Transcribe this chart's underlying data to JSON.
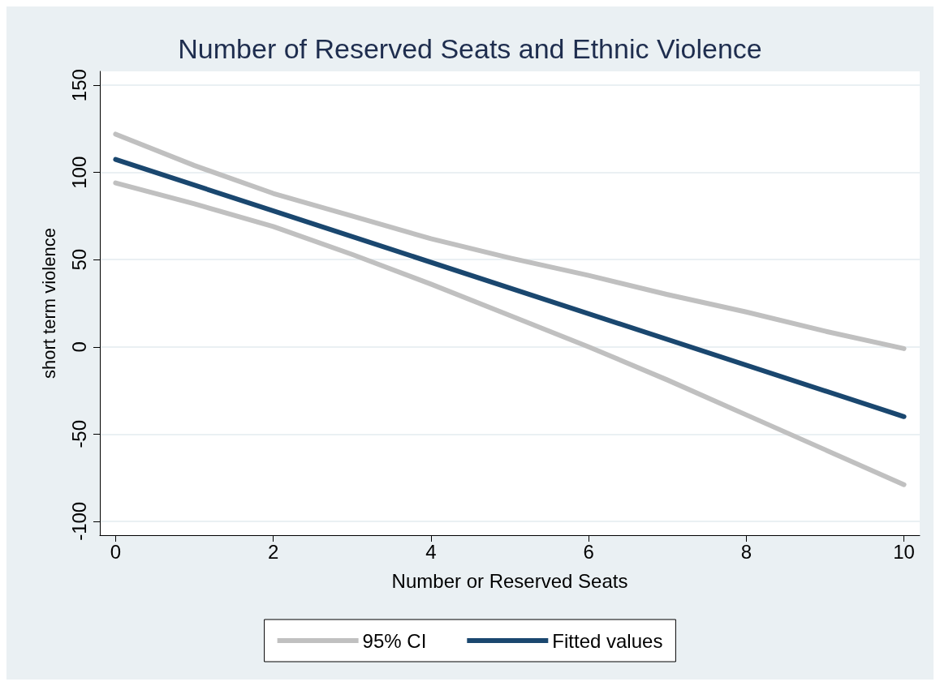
{
  "chart_data": {
    "type": "line",
    "title": "Number of Reserved Seats and Ethnic Violence",
    "xlabel": "Number or Reserved Seats",
    "ylabel": "short term violence",
    "xlim": [
      -0.2,
      10.2
    ],
    "xticks": [
      0,
      2,
      4,
      6,
      8,
      10
    ],
    "ylim": [
      -108,
      158
    ],
    "yticks": [
      -100,
      -50,
      0,
      50,
      100,
      150
    ],
    "grid": "y",
    "legend": "bottom",
    "marker": "none",
    "line_style": "solid",
    "series": [
      {
        "name": "95% CI",
        "color": "#c0c0c0",
        "x": [
          0,
          1,
          2,
          3,
          4,
          5,
          6,
          7,
          8,
          9,
          10
        ],
        "values": [
          122,
          104,
          88,
          75,
          62,
          51,
          41,
          30,
          20,
          9,
          -1
        ]
      },
      {
        "color": "#c0c0c0",
        "x": [
          0,
          1,
          2,
          3,
          4,
          5,
          6,
          7,
          8,
          9,
          10
        ],
        "values": [
          94,
          82,
          69,
          53,
          36,
          18,
          0,
          -19,
          -39,
          -59,
          -79
        ]
      },
      {
        "name": "Fitted values",
        "color": "#1a476f",
        "x": [
          0,
          10
        ],
        "values": [
          107.5,
          -40
        ]
      }
    ]
  }
}
